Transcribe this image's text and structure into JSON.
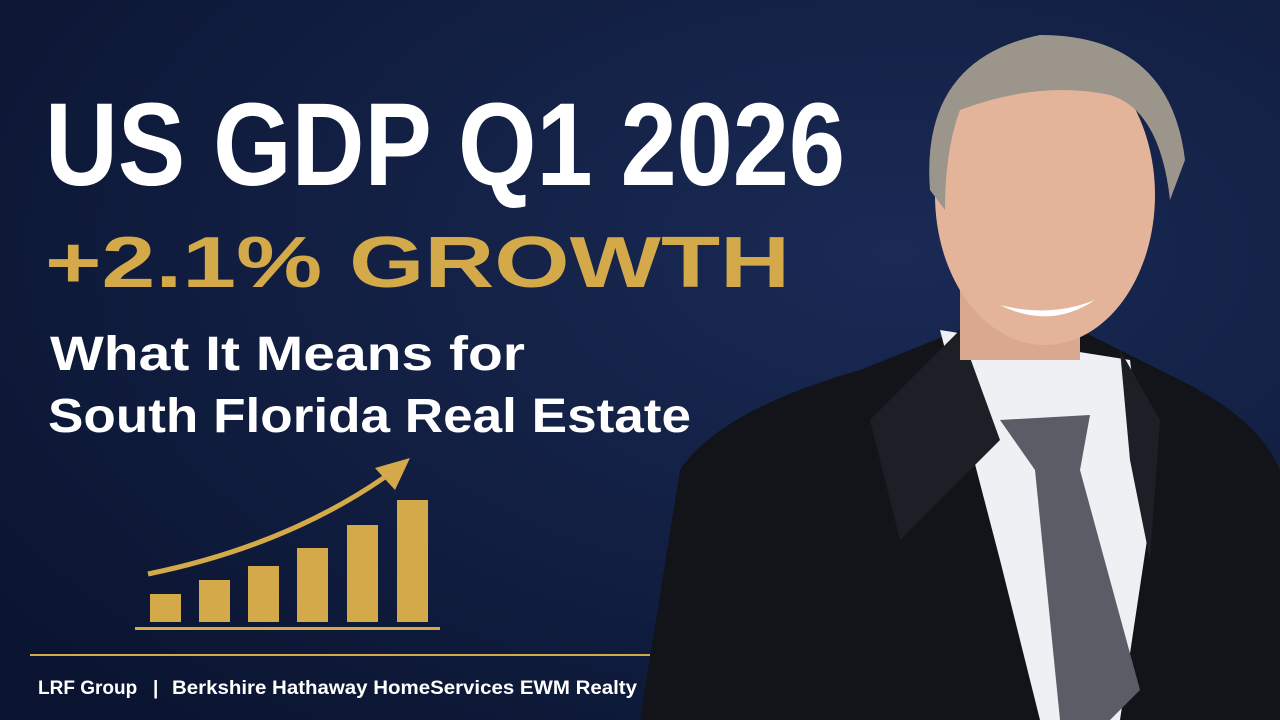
{
  "headline": {
    "title": "US GDP Q1 2026",
    "growth": "+2.1% GROWTH",
    "subtitle_lines": [
      "What It Means for",
      "South Florida Real Estate"
    ]
  },
  "footer": {
    "group": "LRF Group",
    "separator": "|",
    "brokerage": "Berkshire Hathaway HomeServices EWM Realty"
  }
}
